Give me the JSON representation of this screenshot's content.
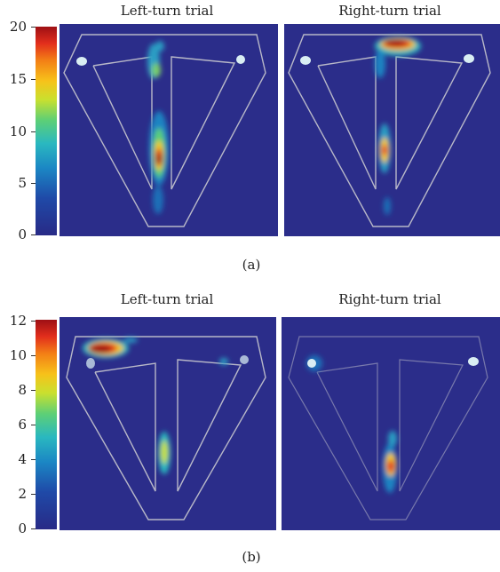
{
  "figure_a": {
    "label": "(a)",
    "panel_titles": [
      "Left-turn trial",
      "Right-turn trial"
    ],
    "colorbar_ticks": [
      "20",
      "15",
      "10",
      "5",
      "0"
    ]
  },
  "figure_b": {
    "label": "(b)",
    "panel_titles": [
      "Left-turn trial",
      "Right-turn trial"
    ],
    "colorbar_ticks": [
      "12",
      "10",
      "8",
      "6",
      "4",
      "2",
      "0"
    ]
  },
  "colors": {
    "background": "#2b2d8a",
    "track_outline": "#b8b8c8",
    "scale_low": "#282a86",
    "scale_high": "#9e0f14"
  }
}
